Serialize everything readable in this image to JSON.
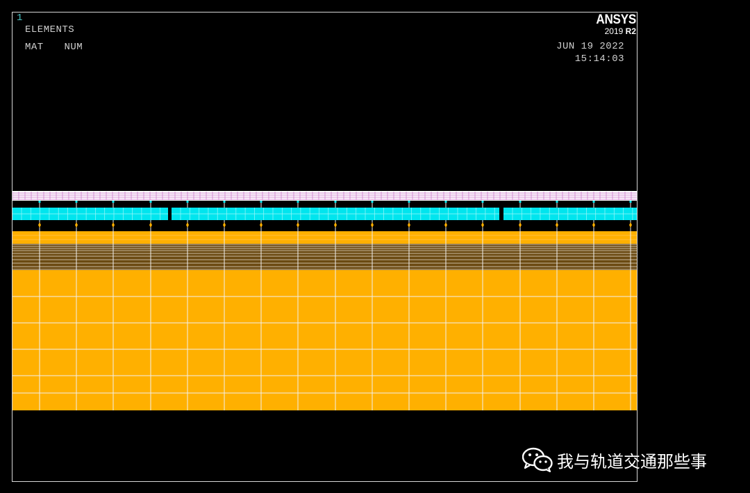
{
  "viewport": {
    "window_number": "1",
    "plot_label_1": "ELEMENTS",
    "plot_label_2": "MAT  NUM",
    "date": "JUN 19 2022",
    "time": "15:14:03"
  },
  "logo": {
    "name": "ANSYS",
    "version_year": "2019",
    "version_release": "R2"
  },
  "colors": {
    "background": "#000000",
    "frame": "#d8d8d8",
    "rail_layer": "#ffffff",
    "rail_mesh": "#c060c0",
    "slab_layer": "#00e5ee",
    "fastener_spring": "#ffb000",
    "base_plate": "#ffb000",
    "subgrade_layer": "#6b4a12",
    "mesh_lines": "#f0f0f0"
  },
  "watermark": {
    "icon": "wechat-icon",
    "text": "我与轨道交通那些事"
  }
}
